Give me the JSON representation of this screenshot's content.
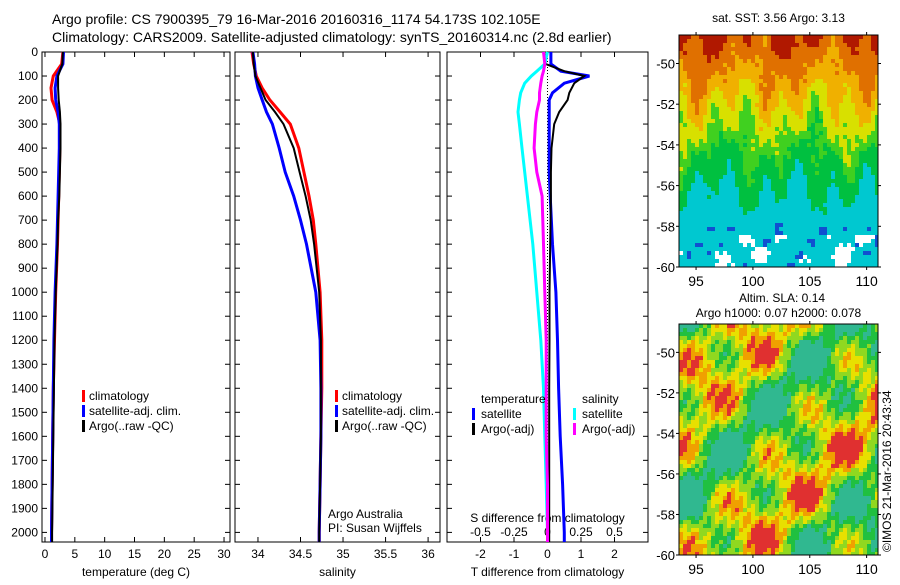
{
  "title": {
    "line1": "Argo profile: CS 7900395_79 16-Mar-2016 20160316_1174 54.173S 102.105E",
    "line2": "Climatology: CARS2009. Satellite-adjusted climatology: synTS_20160314.nc (2.8d earlier)"
  },
  "footer_notes": {
    "operator": "Argo Australia",
    "pi": "PI: Susan Wijffels",
    "copyright": "©IMOS 21-Mar-2016 20:43:34"
  },
  "colors": {
    "climatology": "#ff0000",
    "satellite": "#0000ff",
    "argo": "#000000",
    "sal_satellite": "#00ffff",
    "sal_argo": "#ff00ff"
  },
  "chart_data": [
    {
      "type": "line",
      "id": "temperature",
      "xlabel": "temperature (deg C)",
      "ylabel": "",
      "xlim": [
        -0.5,
        31
      ],
      "ylim": [
        0,
        2040
      ],
      "xticks": [
        0,
        5,
        10,
        15,
        20,
        25,
        30
      ],
      "yticks": [
        0,
        100,
        200,
        300,
        400,
        500,
        600,
        700,
        800,
        900,
        1000,
        1100,
        1200,
        1300,
        1400,
        1500,
        1600,
        1700,
        1800,
        1900,
        2000
      ],
      "legend": [
        "climatology",
        "satellite-adj. clim.",
        "Argo(..raw -QC)"
      ],
      "depth": [
        0,
        50,
        100,
        150,
        200,
        250,
        300,
        400,
        500,
        600,
        700,
        800,
        1000,
        1200,
        1400,
        1600,
        1800,
        2000,
        2040
      ],
      "series": [
        {
          "name": "climatology",
          "color": "#ff0000",
          "values": [
            3.0,
            2.8,
            1.4,
            1.0,
            1.2,
            2.0,
            2.5,
            2.5,
            2.4,
            2.3,
            2.2,
            2.1,
            1.8,
            1.6,
            1.4,
            1.3,
            1.2,
            1.1,
            1.1
          ]
        },
        {
          "name": "satellite-adj. clim.",
          "color": "#0000ff",
          "values": [
            3.1,
            3.0,
            2.0,
            1.7,
            1.8,
            2.2,
            2.4,
            2.4,
            2.3,
            2.2,
            2.1,
            2.0,
            1.7,
            1.5,
            1.4,
            1.3,
            1.2,
            1.1,
            1.1
          ]
        },
        {
          "name": "Argo(..raw -QC)",
          "color": "#000000",
          "values": [
            3.0,
            2.9,
            2.2,
            2.2,
            2.3,
            2.5,
            2.6,
            2.6,
            2.5,
            2.4,
            2.2,
            2.1,
            1.8,
            1.6,
            1.5,
            1.4,
            1.3,
            1.2,
            1.2
          ]
        }
      ]
    },
    {
      "type": "line",
      "id": "salinity",
      "xlabel": "salinity",
      "xlim": [
        33.73,
        36.14
      ],
      "ylim": [
        0,
        2040
      ],
      "xticks": [
        34,
        34.5,
        35,
        35.5,
        36
      ],
      "legend": [
        "climatology",
        "satellite-adj. clim.",
        "Argo(..raw -QC)"
      ],
      "depth": [
        0,
        50,
        100,
        150,
        200,
        250,
        300,
        400,
        500,
        600,
        700,
        800,
        1000,
        1200,
        1400,
        1600,
        1800,
        2000,
        2040
      ],
      "series": [
        {
          "name": "climatology",
          "color": "#ff0000",
          "values": [
            33.93,
            33.95,
            33.98,
            34.05,
            34.14,
            34.26,
            34.38,
            34.48,
            34.54,
            34.6,
            34.65,
            34.68,
            34.73,
            34.75,
            34.75,
            34.74,
            34.73,
            34.72,
            34.72
          ]
        },
        {
          "name": "satellite-adj. clim.",
          "color": "#0000ff",
          "values": [
            33.94,
            33.96,
            33.97,
            34.0,
            34.05,
            34.1,
            34.17,
            34.25,
            34.32,
            34.42,
            34.5,
            34.57,
            34.68,
            34.73,
            34.74,
            34.74,
            34.73,
            34.72,
            34.72
          ]
        },
        {
          "name": "Argo(..raw -QC)",
          "color": "#000000",
          "values": [
            33.94,
            33.95,
            33.97,
            34.03,
            34.09,
            34.2,
            34.3,
            34.42,
            34.49,
            34.56,
            34.62,
            34.66,
            34.72,
            34.74,
            34.74,
            34.74,
            34.73,
            34.72,
            34.72
          ]
        }
      ]
    },
    {
      "type": "line",
      "id": "difference",
      "xlabel": "T difference from climatology",
      "xlabel_top": "S difference from climatology",
      "xlim": [
        -3,
        3
      ],
      "xlim_salinity": [
        -0.75,
        0.75
      ],
      "xticks": [
        -2,
        -1,
        0,
        1,
        2
      ],
      "xticks_salinity": [
        -0.5,
        -0.25,
        0,
        0.25,
        0.5
      ],
      "ylim": [
        0,
        2040
      ],
      "legend_temperature_title": "temperature",
      "legend_salinity_title": "salinity",
      "legend_temperature": [
        "satellite",
        "Argo(-adj)"
      ],
      "legend_salinity": [
        "satellite",
        "Argo(-adj)"
      ],
      "depth": [
        0,
        50,
        80,
        100,
        130,
        170,
        200,
        250,
        300,
        400,
        500,
        600,
        800,
        1000,
        1200,
        1400,
        1600,
        1800,
        2000,
        2040
      ],
      "series": [
        {
          "name": "T satellite",
          "axis": "T",
          "color": "#0000ff",
          "values": [
            0.1,
            0.1,
            0.4,
            1.25,
            0.5,
            0.15,
            0.05,
            0.05,
            0.05,
            0.05,
            0.05,
            0.08,
            0.15,
            0.25,
            0.3,
            0.33,
            0.38,
            0.45,
            0.5,
            0.5
          ]
        },
        {
          "name": "T Argo(-adj)",
          "axis": "T",
          "color": "#000000",
          "values": [
            -0.1,
            -0.05,
            0.5,
            1.1,
            0.8,
            0.65,
            0.6,
            0.35,
            0.2,
            0.12,
            0.1,
            0.1,
            0.08,
            0.06,
            0.06,
            0.05,
            0.05,
            0.05,
            0.05,
            0.05
          ]
        },
        {
          "name": "S satellite",
          "axis": "S",
          "color": "#00ffff",
          "values": [
            0.0,
            -0.02,
            -0.08,
            -0.12,
            -0.17,
            -0.2,
            -0.21,
            -0.22,
            -0.21,
            -0.19,
            -0.17,
            -0.15,
            -0.11,
            -0.08,
            -0.05,
            -0.03,
            -0.02,
            -0.01,
            0.0,
            0.0
          ]
        },
        {
          "name": "S Argo(-adj)",
          "axis": "S",
          "color": "#ff00ff",
          "values": [
            -0.03,
            -0.02,
            -0.03,
            -0.04,
            -0.05,
            -0.06,
            -0.06,
            -0.08,
            -0.09,
            -0.1,
            -0.08,
            -0.04,
            -0.03,
            -0.02,
            -0.01,
            -0.01,
            -0.01,
            0.0,
            0.0,
            0.0
          ]
        }
      ]
    },
    {
      "type": "heatmap",
      "id": "sst-map",
      "title": "sat. SST: 3.56 Argo: 3.13",
      "xlim": [
        93.5,
        111
      ],
      "ylim": [
        -48.6,
        -60
      ],
      "xticks": [
        95,
        100,
        105,
        110
      ],
      "yticks": [
        -50,
        -52,
        -54,
        -56,
        -58,
        -60
      ]
    },
    {
      "type": "heatmap",
      "id": "sla-map",
      "title_line1": "Altim. SLA: 0.14",
      "title_line2": "Argo h1000: 0.07 h2000: 0.078",
      "xlim": [
        93.5,
        111
      ],
      "ylim": [
        -48.6,
        -60
      ],
      "xticks": [
        95,
        100,
        105,
        110
      ],
      "yticks": [
        -50,
        -52,
        -54,
        -56,
        -58,
        -60
      ]
    }
  ]
}
